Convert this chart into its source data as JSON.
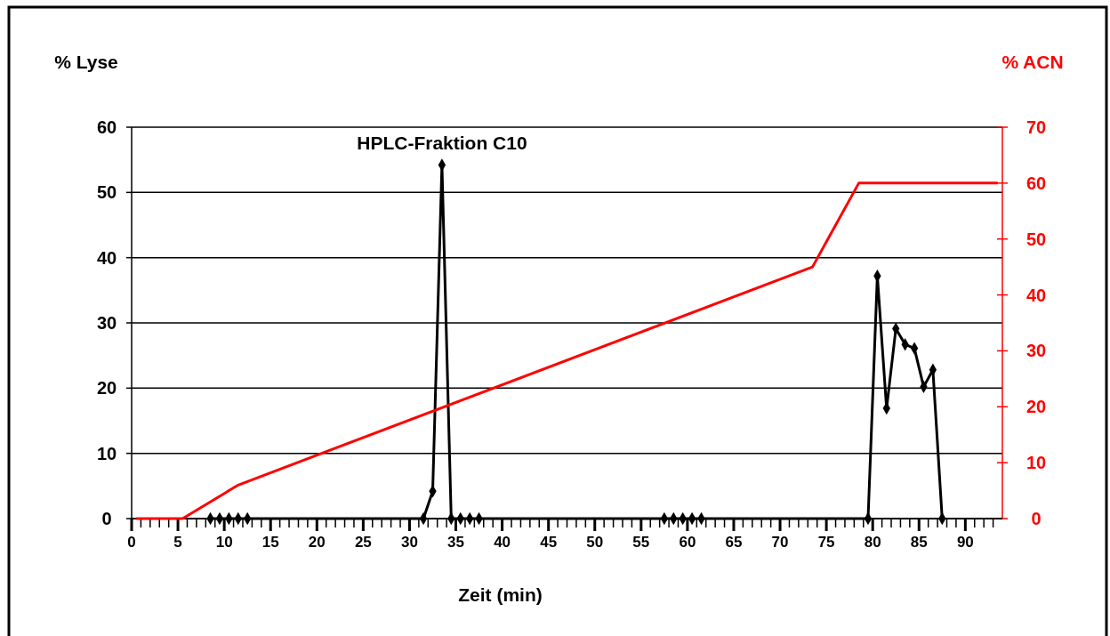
{
  "chart_data": {
    "type": "line",
    "ylabel": "% Lyse",
    "y2label": "% ACN",
    "xlabel": "Zeit (min)",
    "annotations": [
      {
        "text": "HPLC-Fraktion C10",
        "x": 33.5,
        "y": 54.2
      }
    ],
    "series": [
      {
        "color": "#000000",
        "marker": "diamond",
        "x": [
          8.5,
          9.5,
          10.5,
          11.5,
          12.5,
          31.5,
          32.5,
          33.5,
          34.5,
          35.5,
          36.5,
          37.5,
          57.5,
          58.5,
          59.5,
          60.5,
          61.5,
          79.5,
          80.5,
          81.5,
          82.5,
          83.5,
          84.5,
          85.5,
          86.5,
          87.5
        ],
        "values": [
          0,
          0,
          0,
          0,
          0,
          0,
          4.2,
          54.2,
          0,
          0,
          0,
          0,
          0,
          0,
          0,
          0,
          0,
          0,
          37.2,
          16.9,
          29.1,
          26.7,
          26.1,
          20.2,
          22.8,
          0
        ]
      },
      {
        "color": "#ff0000",
        "axis": "y2",
        "marker": "none",
        "x": [
          0.5,
          5.5,
          11.5,
          73.5,
          78.5,
          93.5
        ],
        "values": [
          0,
          0,
          6,
          45,
          60,
          60
        ]
      }
    ],
    "xlim": [
      0,
      94
    ],
    "xticks": [
      0,
      {
        "value": 1,
        "label": null
      },
      {
        "value": 2,
        "label": null
      },
      {
        "value": 3,
        "label": null
      },
      {
        "value": 4,
        "label": null
      },
      5,
      {
        "value": 6,
        "label": null
      },
      {
        "value": 7,
        "label": null
      },
      {
        "value": 8,
        "label": null
      },
      {
        "value": 9,
        "label": null
      },
      10,
      {
        "value": 11,
        "label": null
      },
      {
        "value": 12,
        "label": null
      },
      {
        "value": 13,
        "label": null
      },
      {
        "value": 14,
        "label": null
      },
      15,
      {
        "value": 16,
        "label": null
      },
      {
        "value": 17,
        "label": null
      },
      {
        "value": 18,
        "label": null
      },
      {
        "value": 19,
        "label": null
      },
      20,
      {
        "value": 21,
        "label": null
      },
      {
        "value": 22,
        "label": null
      },
      {
        "value": 23,
        "label": null
      },
      {
        "value": 24,
        "label": null
      },
      25,
      {
        "value": 26,
        "label": null
      },
      {
        "value": 27,
        "label": null
      },
      {
        "value": 28,
        "label": null
      },
      {
        "value": 29,
        "label": null
      },
      30,
      {
        "value": 31,
        "label": null
      },
      {
        "value": 32,
        "label": null
      },
      {
        "value": 33,
        "label": null
      },
      {
        "value": 34,
        "label": null
      },
      35,
      {
        "value": 36,
        "label": null
      },
      {
        "value": 37,
        "label": null
      },
      {
        "value": 38,
        "label": null
      },
      {
        "value": 39,
        "label": null
      },
      40,
      {
        "value": 41,
        "label": null
      },
      {
        "value": 42,
        "label": null
      },
      {
        "value": 43,
        "label": null
      },
      {
        "value": 44,
        "label": null
      },
      45,
      {
        "value": 46,
        "label": null
      },
      {
        "value": 47,
        "label": null
      },
      {
        "value": 48,
        "label": null
      },
      {
        "value": 49,
        "label": null
      },
      50,
      {
        "value": 51,
        "label": null
      },
      {
        "value": 52,
        "label": null
      },
      {
        "value": 53,
        "label": null
      },
      {
        "value": 54,
        "label": null
      },
      55,
      {
        "value": 56,
        "label": null
      },
      {
        "value": 57,
        "label": null
      },
      {
        "value": 58,
        "label": null
      },
      {
        "value": 59,
        "label": null
      },
      60,
      {
        "value": 61,
        "label": null
      },
      {
        "value": 62,
        "label": null
      },
      {
        "value": 63,
        "label": null
      },
      {
        "value": 64,
        "label": null
      },
      65,
      {
        "value": 66,
        "label": null
      },
      {
        "value": 67,
        "label": null
      },
      {
        "value": 68,
        "label": null
      },
      {
        "value": 69,
        "label": null
      },
      70,
      {
        "value": 71,
        "label": null
      },
      {
        "value": 72,
        "label": null
      },
      {
        "value": 73,
        "label": null
      },
      {
        "value": 74,
        "label": null
      },
      75,
      {
        "value": 76,
        "label": null
      },
      {
        "value": 77,
        "label": null
      },
      {
        "value": 78,
        "label": null
      },
      {
        "value": 79,
        "label": null
      },
      80,
      {
        "value": 81,
        "label": null
      },
      {
        "value": 82,
        "label": null
      },
      {
        "value": 83,
        "label": null
      },
      {
        "value": 84,
        "label": null
      },
      85,
      {
        "value": 86,
        "label": null
      },
      {
        "value": 87,
        "label": null
      },
      {
        "value": 88,
        "label": null
      },
      {
        "value": 89,
        "label": null
      },
      90,
      {
        "value": 91,
        "label": null
      },
      {
        "value": 92,
        "label": null
      },
      {
        "value": 93,
        "label": null
      }
    ],
    "ylim": [
      0,
      60
    ],
    "yticks": [
      0,
      10,
      20,
      30,
      40,
      50,
      60
    ],
    "y2lim": [
      0,
      70
    ],
    "y2ticks": [
      0,
      10,
      20,
      30,
      40,
      50,
      60,
      70
    ],
    "grid": "y"
  }
}
